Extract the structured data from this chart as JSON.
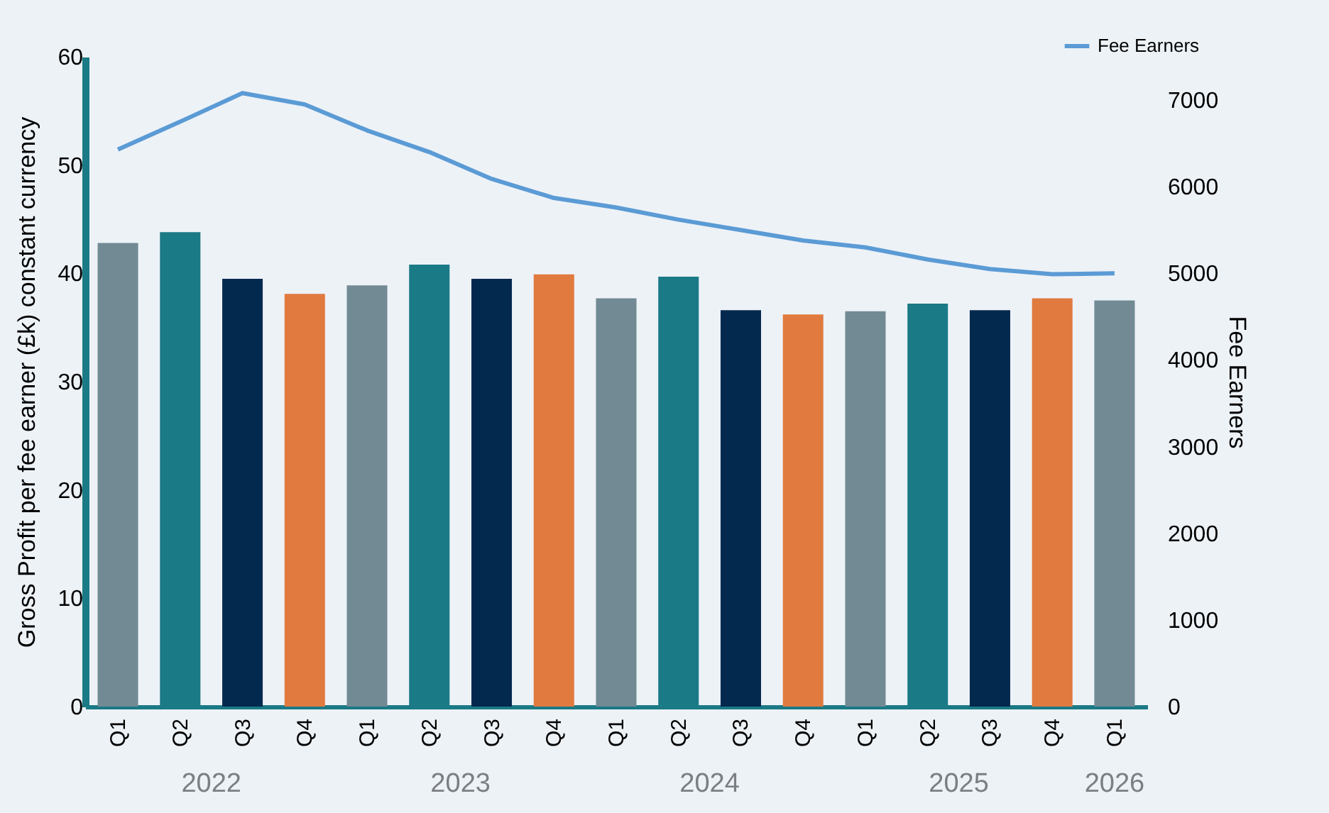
{
  "chart_data": {
    "type": "bar",
    "ylabel": "Gross Profit per fee earner (£k) constant currency",
    "y2label": "Fee Earners",
    "categories": [
      "Q1",
      "Q2",
      "Q3",
      "Q4",
      "Q1",
      "Q2",
      "Q3",
      "Q4",
      "Q1",
      "Q2",
      "Q3",
      "Q4",
      "Q1",
      "Q2",
      "Q3",
      "Q4",
      "Q1"
    ],
    "series": [
      {
        "colors": [
          "#728a94",
          "#1a7a86",
          "#04294f",
          "#e07a3f",
          "#728a94",
          "#1a7a86",
          "#04294f",
          "#e07a3f",
          "#728a94",
          "#1a7a86",
          "#04294f",
          "#e07a3f",
          "#728a94",
          "#1a7a86",
          "#04294f",
          "#e07a3f",
          "#728a94"
        ],
        "values": [
          42.8,
          43.8,
          39.5,
          38.1,
          38.9,
          40.8,
          39.5,
          39.9,
          37.7,
          39.7,
          36.6,
          36.2,
          36.5,
          37.2,
          36.6,
          37.7,
          37.5
        ]
      },
      {
        "type": "line",
        "name": "Fee Earners",
        "color": "#5b9bd5",
        "axis": "y2",
        "values": [
          6430,
          6750,
          7080,
          6950,
          6650,
          6400,
          6090,
          5870,
          5760,
          5620,
          5500,
          5380,
          5300,
          5160,
          5050,
          4990,
          5000
        ]
      }
    ],
    "ylim": [
      0,
      60
    ],
    "yticks": [
      0,
      10,
      20,
      30,
      40,
      50,
      60
    ],
    "y2lim": [
      0,
      7500
    ],
    "y2ticks": [
      0,
      1000,
      2000,
      3000,
      4000,
      5000,
      6000,
      7000
    ],
    "legend": "top right",
    "annotations": [
      "2022",
      "2023",
      "2024",
      "2025",
      "2026"
    ]
  }
}
